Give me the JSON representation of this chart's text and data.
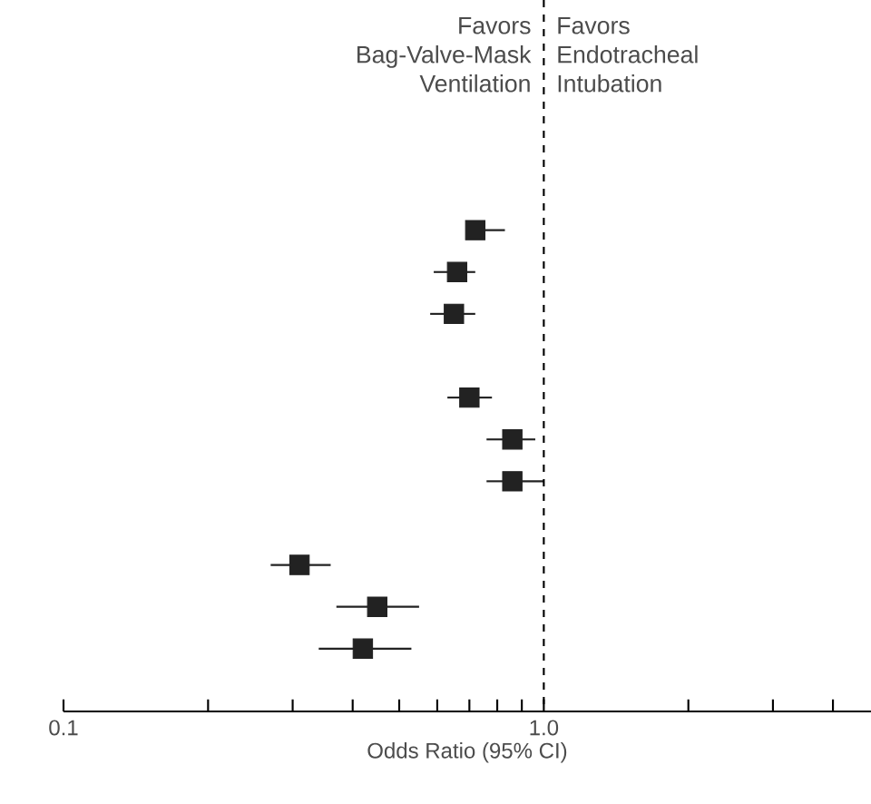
{
  "chart_data": {
    "type": "scatter",
    "orientation": "horizontal",
    "log": "x",
    "categories": [
      null,
      null,
      null,
      null,
      null,
      null,
      null,
      null,
      null,
      null,
      null,
      null,
      null,
      null,
      null,
      null,
      null
    ],
    "series": [
      {
        "color": "#222222",
        "values": [
          null,
          null,
          null,
          null,
          null,
          0.72,
          0.66,
          0.65,
          null,
          0.7,
          0.86,
          0.86,
          null,
          0.31,
          0.45,
          0.42,
          null
        ],
        "errors": [
          null,
          null,
          null,
          null,
          null,
          [
            0.69,
            0.83
          ],
          [
            0.59,
            0.72
          ],
          [
            0.58,
            0.72
          ],
          null,
          [
            0.63,
            0.78
          ],
          [
            0.76,
            0.96
          ],
          [
            0.76,
            1.0
          ],
          null,
          [
            0.27,
            0.36
          ],
          [
            0.37,
            0.55
          ],
          [
            0.34,
            0.53
          ],
          null
        ]
      }
    ],
    "marker": "square",
    "xlim": [
      0.1,
      4.8
    ],
    "xticks": [
      0.1,
      {
        "value": 0.2,
        "label": null
      },
      {
        "value": 0.3,
        "label": null
      },
      {
        "value": 0.4,
        "label": null
      },
      {
        "value": 0.5,
        "label": null
      },
      {
        "value": 0.6,
        "label": null
      },
      {
        "value": 0.7,
        "label": null
      },
      {
        "value": 0.8,
        "label": null
      },
      {
        "value": 0.9,
        "label": null
      },
      {
        "value": 1,
        "label": "1.0"
      },
      {
        "value": 2,
        "label": null
      },
      {
        "value": 3,
        "label": null
      },
      {
        "value": 4,
        "label": null
      }
    ],
    "tick_labels": "x",
    "xlabel": "Odds Ratio (95% CI)",
    "ref_lines": [
      {
        "axis": "x",
        "value": 1,
        "line_style": "dashed"
      }
    ],
    "annotations": [
      "Favors Bag-Valve-Mask Ventilation",
      "Favors Endotracheal Intubation"
    ],
    "grid": false
  }
}
